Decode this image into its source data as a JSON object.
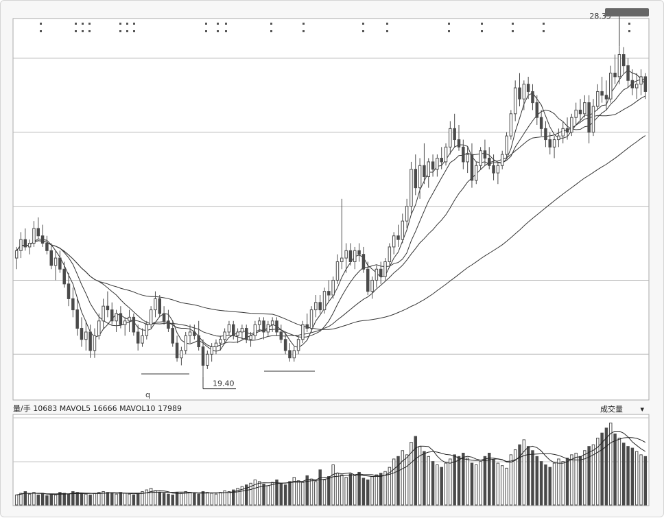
{
  "colors": {
    "grid": "#b8b8b8",
    "candle": "#4a4a4a",
    "ma_line": "#333333",
    "volume": "#4a4a4a"
  },
  "price_panel": {
    "high_label": "28.33",
    "low_label": "19.40",
    "x_marker": "q"
  },
  "volume_panel": {
    "header": "量/手  10683  MAVOL5  16666  MAVOL10  17989",
    "indicator_select": "成交量",
    "indicator_arrow": "▾"
  },
  "icons": {
    "dropdown": "chevron-down-icon"
  },
  "chart_data": {
    "type": "candlestick",
    "candles": [
      [
        22.6,
        22.9,
        22.3,
        22.8
      ],
      [
        22.8,
        23.3,
        22.6,
        23.1
      ],
      [
        23.1,
        23.4,
        22.8,
        22.9
      ],
      [
        22.9,
        23.1,
        22.7,
        23.0
      ],
      [
        23.0,
        23.6,
        22.9,
        23.4
      ],
      [
        23.4,
        23.7,
        23.1,
        23.2
      ],
      [
        23.2,
        23.5,
        22.9,
        23.0
      ],
      [
        23.0,
        23.2,
        22.7,
        22.8
      ],
      [
        22.8,
        23.0,
        22.3,
        22.4
      ],
      [
        22.4,
        22.8,
        22.0,
        22.6
      ],
      [
        22.6,
        22.8,
        22.2,
        22.3
      ],
      [
        22.3,
        22.5,
        21.8,
        21.9
      ],
      [
        21.9,
        22.2,
        21.3,
        21.5
      ],
      [
        21.5,
        21.8,
        21.0,
        21.2
      ],
      [
        21.2,
        21.5,
        20.5,
        20.7
      ],
      [
        20.7,
        21.0,
        20.2,
        20.4
      ],
      [
        20.4,
        20.9,
        20.1,
        20.6
      ],
      [
        20.6,
        20.8,
        19.9,
        20.1
      ],
      [
        20.1,
        20.7,
        19.9,
        20.5
      ],
      [
        20.5,
        21.1,
        20.4,
        20.9
      ],
      [
        20.9,
        21.5,
        20.7,
        21.3
      ],
      [
        21.3,
        21.7,
        21.0,
        21.2
      ],
      [
        21.2,
        21.4,
        20.8,
        20.9
      ],
      [
        20.9,
        21.2,
        20.6,
        21.1
      ],
      [
        21.1,
        21.3,
        20.7,
        20.8
      ],
      [
        20.8,
        21.0,
        20.5,
        20.9
      ],
      [
        20.9,
        21.2,
        20.6,
        21.0
      ],
      [
        21.0,
        21.1,
        20.5,
        20.6
      ],
      [
        20.6,
        20.8,
        20.1,
        20.3
      ],
      [
        20.3,
        20.7,
        20.2,
        20.5
      ],
      [
        20.5,
        20.9,
        20.4,
        20.8
      ],
      [
        20.8,
        21.3,
        20.7,
        21.2
      ],
      [
        21.2,
        21.7,
        21.0,
        21.5
      ],
      [
        21.5,
        21.6,
        21.0,
        21.1
      ],
      [
        21.1,
        21.3,
        20.8,
        20.9
      ],
      [
        20.9,
        21.2,
        20.6,
        20.7
      ],
      [
        20.7,
        20.9,
        20.2,
        20.3
      ],
      [
        20.3,
        20.5,
        19.8,
        19.9
      ],
      [
        19.9,
        20.2,
        19.7,
        20.1
      ],
      [
        20.1,
        20.6,
        20.0,
        20.5
      ],
      [
        20.5,
        20.8,
        20.3,
        20.6
      ],
      [
        20.6,
        20.8,
        20.4,
        20.5
      ],
      [
        20.5,
        20.9,
        20.1,
        20.2
      ],
      [
        20.2,
        20.4,
        19.4,
        19.7
      ],
      [
        19.7,
        20.1,
        19.6,
        20.0
      ],
      [
        20.0,
        20.3,
        19.8,
        20.2
      ],
      [
        20.2,
        20.4,
        20.0,
        20.3
      ],
      [
        20.3,
        20.5,
        20.1,
        20.4
      ],
      [
        20.4,
        20.7,
        20.3,
        20.6
      ],
      [
        20.6,
        20.9,
        20.5,
        20.8
      ],
      [
        20.8,
        20.9,
        20.4,
        20.5
      ],
      [
        20.5,
        20.7,
        20.3,
        20.6
      ],
      [
        20.6,
        20.8,
        20.4,
        20.7
      ],
      [
        20.7,
        20.8,
        20.3,
        20.4
      ],
      [
        20.4,
        20.6,
        20.2,
        20.5
      ],
      [
        20.5,
        20.9,
        20.4,
        20.8
      ],
      [
        20.8,
        21.0,
        20.6,
        20.9
      ],
      [
        20.9,
        21.0,
        20.4,
        20.6
      ],
      [
        20.6,
        20.9,
        20.5,
        20.8
      ],
      [
        20.8,
        21.0,
        20.6,
        20.9
      ],
      [
        20.9,
        21.0,
        20.5,
        20.6
      ],
      [
        20.6,
        20.8,
        20.3,
        20.4
      ],
      [
        20.4,
        20.6,
        20.0,
        20.1
      ],
      [
        20.1,
        20.3,
        19.8,
        19.9
      ],
      [
        19.9,
        20.2,
        19.8,
        20.1
      ],
      [
        20.1,
        20.5,
        20.0,
        20.4
      ],
      [
        20.4,
        20.9,
        20.3,
        20.8
      ],
      [
        20.8,
        21.1,
        20.6,
        20.7
      ],
      [
        20.7,
        21.3,
        20.6,
        21.2
      ],
      [
        21.2,
        21.6,
        21.0,
        21.4
      ],
      [
        21.4,
        21.6,
        21.1,
        21.2
      ],
      [
        21.2,
        21.8,
        21.1,
        21.7
      ],
      [
        21.7,
        22.0,
        21.4,
        21.6
      ],
      [
        21.6,
        22.1,
        21.5,
        22.0
      ],
      [
        22.0,
        22.7,
        21.9,
        22.5
      ],
      [
        22.5,
        24.2,
        22.3,
        22.6
      ],
      [
        22.6,
        23.0,
        22.2,
        22.8
      ],
      [
        22.8,
        23.0,
        22.4,
        22.5
      ],
      [
        22.5,
        22.9,
        22.3,
        22.8
      ],
      [
        22.8,
        23.0,
        22.5,
        22.7
      ],
      [
        22.7,
        22.9,
        22.2,
        22.3
      ],
      [
        22.3,
        22.5,
        21.6,
        21.7
      ],
      [
        21.7,
        22.1,
        21.5,
        22.0
      ],
      [
        22.0,
        22.4,
        21.8,
        22.3
      ],
      [
        22.3,
        22.5,
        21.9,
        22.1
      ],
      [
        22.1,
        22.6,
        22.0,
        22.5
      ],
      [
        22.5,
        23.0,
        22.4,
        22.9
      ],
      [
        22.9,
        23.3,
        22.7,
        23.2
      ],
      [
        23.2,
        23.5,
        22.9,
        23.1
      ],
      [
        23.1,
        23.8,
        23.0,
        23.6
      ],
      [
        23.6,
        24.2,
        23.4,
        24.0
      ],
      [
        24.0,
        25.2,
        23.8,
        25.0
      ],
      [
        25.0,
        25.4,
        24.3,
        24.5
      ],
      [
        24.5,
        25.3,
        24.2,
        25.1
      ],
      [
        25.1,
        25.7,
        24.6,
        24.8
      ],
      [
        24.8,
        25.3,
        24.5,
        25.2
      ],
      [
        25.2,
        25.4,
        24.8,
        25.0
      ],
      [
        25.0,
        25.4,
        24.8,
        25.3
      ],
      [
        25.3,
        25.6,
        25.0,
        25.2
      ],
      [
        25.2,
        25.7,
        25.1,
        25.6
      ],
      [
        25.6,
        26.3,
        25.4,
        26.1
      ],
      [
        26.1,
        26.5,
        25.6,
        25.8
      ],
      [
        25.8,
        26.2,
        25.5,
        25.6
      ],
      [
        25.6,
        25.8,
        25.0,
        25.2
      ],
      [
        25.2,
        25.6,
        24.9,
        25.4
      ],
      [
        25.4,
        25.7,
        24.5,
        24.7
      ],
      [
        24.7,
        25.2,
        24.6,
        25.1
      ],
      [
        25.1,
        25.6,
        25.0,
        25.5
      ],
      [
        25.5,
        25.8,
        25.1,
        25.3
      ],
      [
        25.3,
        25.6,
        25.0,
        25.1
      ],
      [
        25.1,
        25.4,
        24.7,
        24.9
      ],
      [
        24.9,
        25.2,
        24.6,
        25.1
      ],
      [
        25.1,
        25.5,
        25.0,
        25.4
      ],
      [
        25.4,
        26.0,
        25.3,
        25.9
      ],
      [
        25.9,
        26.6,
        25.8,
        26.5
      ],
      [
        26.5,
        27.4,
        26.3,
        27.2
      ],
      [
        27.2,
        27.6,
        26.7,
        26.9
      ],
      [
        26.9,
        27.4,
        26.6,
        27.3
      ],
      [
        27.3,
        27.5,
        26.9,
        27.1
      ],
      [
        27.1,
        27.3,
        26.6,
        26.8
      ],
      [
        26.8,
        27.0,
        26.2,
        26.4
      ],
      [
        26.4,
        26.6,
        25.9,
        26.1
      ],
      [
        26.1,
        26.3,
        25.6,
        25.8
      ],
      [
        25.8,
        26.0,
        25.4,
        25.6
      ],
      [
        25.6,
        25.9,
        25.3,
        25.8
      ],
      [
        25.8,
        26.1,
        25.6,
        25.9
      ],
      [
        25.9,
        26.3,
        25.7,
        26.1
      ],
      [
        26.1,
        26.4,
        25.8,
        26.0
      ],
      [
        26.0,
        26.5,
        25.9,
        26.4
      ],
      [
        26.4,
        26.8,
        26.2,
        26.6
      ],
      [
        26.6,
        26.9,
        26.3,
        26.5
      ],
      [
        26.5,
        27.0,
        26.4,
        26.8
      ],
      [
        26.8,
        27.0,
        25.7,
        26.0
      ],
      [
        26.0,
        26.9,
        25.9,
        26.7
      ],
      [
        26.7,
        27.3,
        26.6,
        27.1
      ],
      [
        27.1,
        27.5,
        26.8,
        27.0
      ],
      [
        27.0,
        27.4,
        26.6,
        26.9
      ],
      [
        26.9,
        27.8,
        26.8,
        27.6
      ],
      [
        27.6,
        28.1,
        27.3,
        27.5
      ],
      [
        27.5,
        28.33,
        27.3,
        28.1
      ],
      [
        28.1,
        28.3,
        27.6,
        27.8
      ],
      [
        27.8,
        28.0,
        27.2,
        27.4
      ],
      [
        27.4,
        27.7,
        27.0,
        27.2
      ],
      [
        27.2,
        27.6,
        26.9,
        27.3
      ],
      [
        27.3,
        27.7,
        27.0,
        27.5
      ],
      [
        27.5,
        27.6,
        26.9,
        27.1
      ]
    ],
    "volume": [
      12,
      14,
      16,
      13,
      15,
      12,
      14,
      11,
      13,
      12,
      15,
      14,
      13,
      16,
      15,
      14,
      13,
      12,
      14,
      15,
      16,
      15,
      14,
      13,
      15,
      14,
      13,
      12,
      14,
      16,
      18,
      20,
      17,
      15,
      14,
      13,
      12,
      15,
      14,
      16,
      15,
      14,
      13,
      16,
      15,
      14,
      13,
      15,
      17,
      16,
      18,
      20,
      22,
      24,
      26,
      30,
      28,
      25,
      23,
      27,
      30,
      26,
      24,
      28,
      33,
      29,
      27,
      35,
      31,
      28,
      42,
      30,
      34,
      48,
      38,
      36,
      33,
      37,
      35,
      39,
      32,
      30,
      34,
      36,
      38,
      40,
      45,
      55,
      58,
      65,
      60,
      75,
      82,
      70,
      64,
      58,
      52,
      48,
      45,
      50,
      55,
      60,
      58,
      62,
      56,
      50,
      48,
      52,
      58,
      62,
      54,
      50,
      47,
      44,
      60,
      66,
      72,
      78,
      70,
      65,
      58,
      52,
      48,
      45,
      50,
      55,
      52,
      56,
      60,
      62,
      58,
      65,
      70,
      72,
      80,
      86,
      92,
      98,
      85,
      80,
      74,
      70,
      68,
      64,
      60,
      58
    ],
    "volume_header": {
      "vol": 10683,
      "mavol5": 16666,
      "mavol10": 17989
    },
    "ma_periods": [
      5,
      10,
      20,
      60
    ],
    "high": 28.33,
    "low": 19.4,
    "ylim": [
      18.8,
      29.0
    ],
    "grid": true
  }
}
